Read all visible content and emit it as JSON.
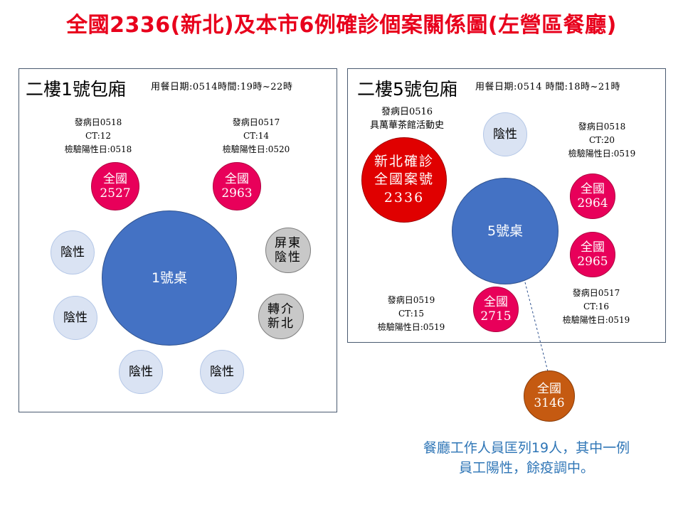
{
  "title": "全國2336(新北)及本市6例確診個案關係圖(左營區餐廳)",
  "left_room": {
    "title": "二樓1號包廂",
    "time_note": "用餐日期:0514時間:19時~22時",
    "table_label": "1號桌",
    "notes": [
      {
        "lines": [
          "發病日0518",
          "CT:12",
          "檢驗陽性日:0518"
        ]
      },
      {
        "lines": [
          "發病日0517",
          "CT:14",
          "檢驗陽性日:0520"
        ]
      }
    ],
    "cases": [
      {
        "line1": "全國",
        "line2": "2527"
      },
      {
        "line1": "全國",
        "line2": "2963"
      }
    ],
    "negatives": [
      "陰性",
      "陰性",
      "陰性",
      "陰性"
    ],
    "gray": [
      {
        "line1": "屏東",
        "line2": "陰性"
      },
      {
        "line1": "轉介",
        "line2": "新北"
      }
    ]
  },
  "right_room": {
    "title": "二樓5號包廂",
    "time_note": "用餐日期:0514  時間:18時~21時",
    "table_label": "5號桌",
    "source_note": {
      "lines": [
        "發病日0516",
        "具萬華茶館活動史"
      ]
    },
    "source_case": {
      "lines": [
        "新北確診",
        "全國案號",
        "2336"
      ]
    },
    "negative": "陰性",
    "notes": [
      {
        "lines": [
          "發病日0518",
          "CT:20",
          "檢驗陽性日:0519"
        ]
      },
      {
        "lines": [
          "發病日0519",
          "CT:15",
          "檢驗陽性日:0519"
        ]
      },
      {
        "lines": [
          "發病日0517",
          "CT:16",
          "檢驗陽性日:0519"
        ]
      }
    ],
    "cases": [
      {
        "line1": "全國",
        "line2": "2964"
      },
      {
        "line1": "全國",
        "line2": "2965"
      },
      {
        "line1": "全國",
        "line2": "2715"
      }
    ]
  },
  "staff_case": {
    "line1": "全國",
    "line2": "3146"
  },
  "footnote": {
    "line1": "餐廳工作人員匡列19人，其中一例",
    "line2": "員工陽性，餘疫調中。"
  },
  "colors": {
    "title": "#e8001c",
    "table": "#4472c4",
    "case": "#e8005a",
    "negative": "#dae3f3",
    "source_case": "#e00000",
    "staff_case": "#c55a11",
    "footnote": "#2e75b6"
  }
}
